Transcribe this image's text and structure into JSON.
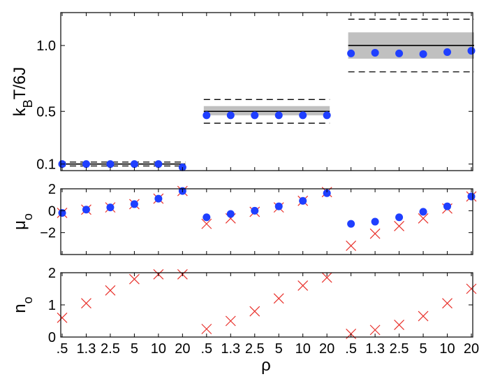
{
  "chart_data": {
    "type": "scatter",
    "x_tick_labels": [
      ".5",
      "1.3",
      "2.5",
      "5",
      "10",
      "20",
      ".5",
      "1.3",
      "2.5",
      "5",
      "10",
      "20",
      ".5",
      "1.3",
      "2.5",
      "5",
      "10",
      "20"
    ],
    "xlabel": "ρ",
    "colors": {
      "dots": "#1f3fff",
      "crosses": "#e8302a",
      "band": "#c0c0c0",
      "line": "#000000"
    },
    "panels": [
      {
        "id": "top",
        "ylabel": {
          "main": "k",
          "sub": "B",
          "rest": "T/6J"
        },
        "ylim": [
          0.05,
          1.25
        ],
        "yticks": [
          0.1,
          0.5,
          1.0
        ],
        "ytick_labels": [
          "0.1",
          "0.5",
          "1.0"
        ],
        "groups": [
          {
            "x_range": [
              1,
              6
            ],
            "solid": 0.1,
            "band": [
              0.095,
              0.105
            ],
            "dashed": [
              0.085,
              0.115
            ]
          },
          {
            "x_range": [
              7,
              12
            ],
            "solid": 0.5,
            "band": [
              0.47,
              0.54
            ],
            "dashed": [
              0.41,
              0.59
            ]
          },
          {
            "x_range": [
              13,
              18
            ],
            "solid": 1.0,
            "band": [
              0.9,
              1.1
            ],
            "dashed": [
              0.8,
              1.2
            ]
          }
        ],
        "dots": [
          0.1,
          0.1,
          0.1,
          0.1,
          0.1,
          0.075,
          0.47,
          0.47,
          0.47,
          0.47,
          0.47,
          0.47,
          0.94,
          0.945,
          0.94,
          0.935,
          0.95,
          0.96
        ],
        "crosses": []
      },
      {
        "id": "mid",
        "ylabel": {
          "main": "μ",
          "sub": "o",
          "rest": ""
        },
        "ylim": [
          -4,
          2
        ],
        "yticks": [
          -2,
          0,
          2
        ],
        "ytick_labels": [
          "−2",
          "0",
          "2"
        ],
        "groups": [],
        "dots": [
          -0.2,
          0.1,
          0.3,
          0.6,
          1.1,
          1.8,
          -0.6,
          -0.3,
          0.0,
          0.4,
          0.9,
          1.6,
          -1.2,
          -1.0,
          -0.6,
          -0.1,
          0.4,
          1.3
        ],
        "crosses": [
          -0.2,
          0.1,
          0.3,
          0.6,
          1.1,
          1.8,
          -1.2,
          -0.7,
          -0.1,
          0.3,
          0.9,
          1.7,
          -3.2,
          -2.1,
          -1.4,
          -0.7,
          0.2,
          1.3
        ]
      },
      {
        "id": "bottom",
        "ylabel": {
          "main": "n",
          "sub": "o",
          "rest": ""
        },
        "ylim": [
          0,
          2
        ],
        "yticks": [
          0,
          1,
          2
        ],
        "ytick_labels": [
          "0",
          "1",
          "2"
        ],
        "groups": [],
        "dots": [],
        "crosses": [
          0.6,
          1.05,
          1.45,
          1.8,
          1.95,
          1.95,
          0.25,
          0.5,
          0.8,
          1.2,
          1.6,
          1.85,
          0.1,
          0.22,
          0.38,
          0.65,
          1.05,
          1.5
        ]
      }
    ]
  }
}
